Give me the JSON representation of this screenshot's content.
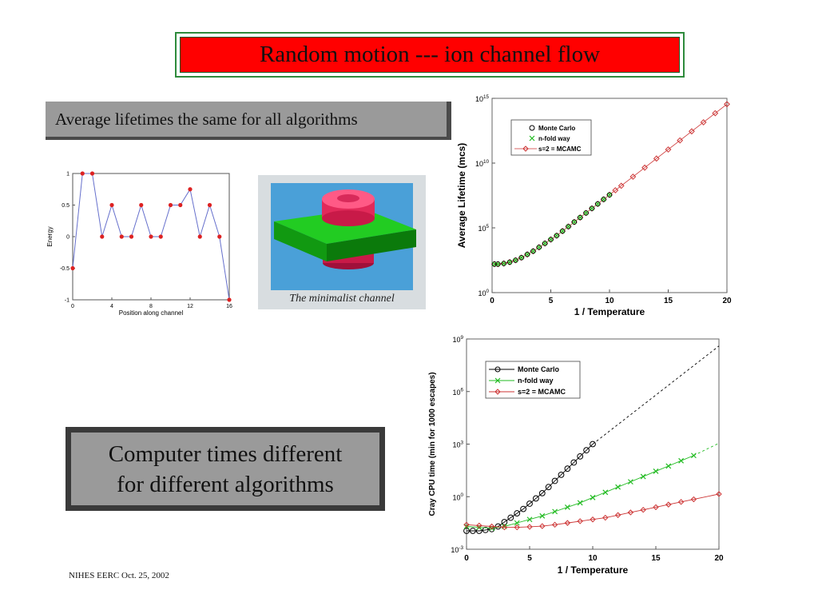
{
  "slide": {
    "title": "Random motion --- ion channel flow",
    "caption_top": "Average lifetimes the same for all algorithms",
    "caption_bottom": "Computer times different\nfor different algorithms",
    "footer": "NIHES EERC Oct. 25, 2002",
    "illustration_caption": "The minimalist channel"
  },
  "colors": {
    "title_bg": "#ff0000",
    "title_border": "#2e8b3c",
    "caption_bg": "#9a9a9a",
    "mc": "#000000",
    "nfold": "#22bb22",
    "mcamc": "#cc3333",
    "energy_line": "#6670cc",
    "energy_point": "#dd2222"
  },
  "chart_data": [
    {
      "id": "energy",
      "type": "line",
      "xlabel": "Position along channel",
      "ylabel": "Energy",
      "xlim": [
        0,
        16
      ],
      "ylim": [
        -1,
        1
      ],
      "xticks": [
        0,
        4,
        8,
        12,
        16
      ],
      "yticks": [
        -1,
        -0.5,
        0,
        0.5,
        1
      ],
      "x": [
        0,
        1,
        2,
        3,
        4,
        5,
        6,
        7,
        8,
        9,
        10,
        11,
        12,
        13,
        14,
        15,
        16
      ],
      "y": [
        -0.5,
        1,
        1,
        0,
        0.5,
        0,
        0,
        0.5,
        0,
        0,
        0.5,
        0.5,
        0.75,
        0,
        0.5,
        0,
        -1
      ]
    },
    {
      "id": "lifetime",
      "type": "scatter",
      "xlabel": "1 / Temperature",
      "ylabel": "Average Lifetime  (mcs)",
      "xlim": [
        0,
        20
      ],
      "ylim_log10": [
        0,
        15
      ],
      "xticks": [
        0,
        5,
        10,
        15,
        20
      ],
      "yticks_log10": [
        0,
        5,
        10,
        15
      ],
      "legend": [
        "Monte Carlo",
        "n-fold way",
        "s=2 = MCAMC"
      ],
      "legend_placement": "top-left",
      "x": [
        0.2,
        0.5,
        1,
        1.5,
        2,
        2.5,
        3,
        3.5,
        4,
        4.5,
        5,
        5.5,
        6,
        6.5,
        7,
        7.5,
        8,
        8.5,
        9,
        9.5,
        10,
        10.5,
        11,
        12,
        13,
        14,
        15,
        16,
        17,
        18,
        19,
        20
      ],
      "log10_y": [
        2.2,
        2.2,
        2.25,
        2.35,
        2.5,
        2.7,
        2.95,
        3.2,
        3.5,
        3.8,
        4.1,
        4.4,
        4.75,
        5.1,
        5.45,
        5.8,
        6.15,
        6.5,
        6.85,
        7.2,
        7.55,
        7.9,
        8.25,
        8.95,
        9.65,
        10.35,
        11.05,
        11.75,
        12.45,
        13.15,
        13.85,
        14.55
      ]
    },
    {
      "id": "cputime",
      "type": "line",
      "xlabel": "1 / Temperature",
      "ylabel": "Cray CPU time (min for 1000 escapes)",
      "xlim": [
        0,
        20
      ],
      "ylim_log10": [
        -3,
        9
      ],
      "xticks": [
        0,
        5,
        10,
        15,
        20
      ],
      "yticks_log10": [
        -3,
        0,
        3,
        6,
        9
      ],
      "legend": [
        "Monte Carlo",
        "n-fold way",
        "s=2 = MCAMC"
      ],
      "legend_placement": "top-left",
      "series": [
        {
          "name": "Monte Carlo",
          "x": [
            0,
            0.5,
            1,
            1.5,
            2,
            2.5,
            3,
            3.5,
            4,
            4.5,
            5,
            5.5,
            6,
            6.5,
            7,
            7.5,
            8,
            8.5,
            9,
            9.5,
            10
          ],
          "log10_y": [
            -1.95,
            -1.95,
            -1.95,
            -1.9,
            -1.85,
            -1.7,
            -1.45,
            -1.2,
            -0.95,
            -0.7,
            -0.4,
            -0.1,
            0.2,
            0.55,
            0.9,
            1.25,
            1.6,
            1.95,
            2.3,
            2.65,
            3.0
          ],
          "extrapolation": {
            "x": [
              10,
              20
            ],
            "log10_y": [
              3.0,
              8.6
            ]
          }
        },
        {
          "name": "n-fold way",
          "x": [
            0,
            1,
            2,
            3,
            4,
            5,
            6,
            7,
            8,
            9,
            10,
            11,
            12,
            13,
            14,
            15,
            16,
            17,
            18
          ],
          "log10_y": [
            -1.7,
            -1.75,
            -1.8,
            -1.7,
            -1.5,
            -1.3,
            -1.1,
            -0.85,
            -0.6,
            -0.35,
            -0.05,
            0.25,
            0.55,
            0.85,
            1.15,
            1.45,
            1.75,
            2.05,
            2.35
          ],
          "extrapolation": {
            "x": [
              18,
              20
            ],
            "log10_y": [
              2.35,
              3.05
            ]
          }
        },
        {
          "name": "s=2 = MCAMC",
          "x": [
            0,
            1,
            2,
            3,
            4,
            5,
            6,
            7,
            8,
            9,
            10,
            11,
            12,
            13,
            14,
            15,
            16,
            17,
            18,
            20
          ],
          "log10_y": [
            -1.6,
            -1.65,
            -1.7,
            -1.75,
            -1.75,
            -1.72,
            -1.68,
            -1.6,
            -1.5,
            -1.4,
            -1.3,
            -1.2,
            -1.05,
            -0.9,
            -0.75,
            -0.6,
            -0.45,
            -0.3,
            -0.15,
            0.15
          ]
        }
      ]
    }
  ]
}
